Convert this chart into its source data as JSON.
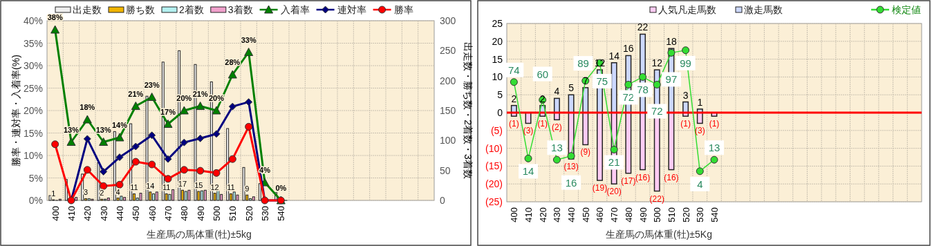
{
  "chart_data": [
    {
      "type": "bar",
      "xlabel": "生産馬の馬体重(牡)±5kg",
      "ylabel": "勝率・連対率・入着率(%)",
      "y2label": "出走数・勝ち数・2着数・3着数",
      "categories": [
        "400",
        "410",
        "420",
        "430",
        "440",
        "450",
        "460",
        "470",
        "480",
        "490",
        "500",
        "510",
        "520",
        "530",
        "540",
        null,
        null,
        null,
        null,
        null,
        null,
        null,
        null,
        null
      ],
      "ylim": [
        0,
        40
      ],
      "yticks": [
        {
          "value": 0,
          "label": "0%"
        },
        {
          "value": 5,
          "label": "5%"
        },
        {
          "value": 10,
          "label": "10%"
        },
        {
          "value": 15,
          "label": "15%"
        },
        {
          "value": 20,
          "label": "20%"
        },
        {
          "value": 25,
          "label": "25%"
        },
        {
          "value": 30,
          "label": "30%"
        },
        {
          "value": 35,
          "label": "35%"
        },
        {
          "value": 40,
          "label": "40%"
        }
      ],
      "y2lim": [
        0,
        300
      ],
      "y2ticks": [
        0,
        50,
        100,
        150,
        200,
        250,
        300
      ],
      "grid": true,
      "legend": "top",
      "series": [
        {
          "name": "出走数",
          "color": "#eeeeee",
          "axis": "y2",
          "values": [
            8,
            35,
            44,
            63,
            115,
            128,
            174,
            231,
            250,
            227,
            198,
            120,
            55,
            28,
            13,
            null,
            null,
            null,
            null,
            null,
            null,
            null,
            null,
            null
          ]
        },
        {
          "name": "勝ち数",
          "color": "#f0b400",
          "axis": "y2",
          "values": [
            1,
            0,
            3,
            2,
            4,
            11,
            14,
            11,
            17,
            15,
            12,
            11,
            9,
            0,
            0,
            null,
            null,
            null,
            null,
            null,
            null,
            null,
            null,
            null
          ],
          "value_labels": [
            "1",
            null,
            "3",
            "2",
            "4",
            "11",
            "14",
            "11",
            "17",
            "15",
            "12",
            "11",
            "9",
            null,
            null,
            null,
            null,
            null,
            null,
            null,
            null,
            null,
            null,
            null
          ]
        },
        {
          "name": "2着数",
          "color": "#b4f0f0",
          "axis": "y2",
          "values": [
            0,
            0,
            3,
            2,
            7,
            4,
            11,
            10,
            15,
            16,
            17,
            14,
            3,
            0,
            0,
            null,
            null,
            null,
            null,
            null,
            null,
            null,
            null,
            null
          ]
        },
        {
          "name": "3着数",
          "color": "#f0a0cc",
          "axis": "y2",
          "values": [
            2,
            5,
            2,
            4,
            5,
            12,
            14,
            18,
            17,
            17,
            10,
            9,
            6,
            null,
            0,
            null,
            null,
            null,
            null,
            null,
            null,
            null,
            null,
            null
          ]
        },
        {
          "name": "入着率",
          "type": "line",
          "color": "#008000",
          "marker": "triangle",
          "values": [
            38,
            13,
            18,
            13,
            14,
            21,
            23,
            17,
            20,
            21,
            20,
            28,
            33,
            4,
            0,
            null,
            null,
            null,
            null,
            null,
            null,
            null,
            null,
            null
          ],
          "value_labels": [
            "38%",
            "13%",
            "18%",
            "13%",
            "14%",
            "21%",
            "23%",
            "17%",
            "20%",
            "21%",
            "20%",
            "28%",
            "33%",
            "4%",
            "0%",
            null,
            null,
            null,
            null,
            null,
            null,
            null,
            null,
            null
          ]
        },
        {
          "name": "連対率",
          "type": "line",
          "color": "#000080",
          "marker": "diamond",
          "values": [
            null,
            0,
            13.7,
            6.4,
            9.6,
            12.0,
            14.5,
            9.2,
            12.9,
            13.8,
            14.8,
            20.9,
            21.9,
            0,
            0,
            null,
            null,
            null,
            null,
            null,
            null,
            null,
            null,
            null
          ]
        },
        {
          "name": "勝率",
          "type": "line",
          "color": "#ff0000",
          "marker": "circle",
          "values": [
            12.5,
            0,
            6.8,
            3.2,
            3.5,
            8.6,
            8.0,
            4.8,
            6.8,
            6.6,
            6.1,
            9.2,
            16.4,
            0,
            0,
            null,
            null,
            null,
            null,
            null,
            null,
            null,
            null,
            null
          ]
        }
      ]
    },
    {
      "type": "bar",
      "stacked": true,
      "xlabel": "生産馬の馬体重(牡)±5Kg",
      "categories": [
        "400",
        "410",
        "420",
        "430",
        "440",
        "450",
        "460",
        "470",
        "480",
        "490",
        "500",
        "510",
        "520",
        "530",
        "540",
        null,
        null,
        null,
        null,
        null,
        null,
        null,
        null,
        null,
        null,
        null,
        null,
        null,
        null
      ],
      "ylim": [
        -25,
        25
      ],
      "y2lim": [
        -20,
        120
      ],
      "yticks": [
        {
          "value": -25,
          "label": "(25)"
        },
        {
          "value": -20,
          "label": "(20)"
        },
        {
          "value": -15,
          "label": "(15)"
        },
        {
          "value": -10,
          "label": "(10)"
        },
        {
          "value": -5,
          "label": "(5)"
        },
        0,
        5,
        10,
        15,
        20,
        25
      ],
      "grid": true,
      "legend": "top",
      "ref_lines": [
        {
          "axis": "y",
          "value": 0,
          "color": "#ff0000"
        }
      ],
      "series": [
        {
          "name": "人気凡走馬数",
          "color": "#ffccf4",
          "values": [
            -1,
            -3,
            -1,
            -2,
            -13,
            -9,
            -19,
            -20,
            -17,
            -16,
            -22,
            -16,
            -1,
            -3,
            -1,
            null,
            null,
            null,
            null,
            null,
            null,
            null,
            null,
            null,
            null,
            null,
            null,
            null,
            null
          ],
          "value_labels": [
            "(1)",
            "(3)",
            "(1)",
            "(2)",
            "(13)",
            "(9)",
            "(19)",
            "(20)",
            "(17)",
            "(16)",
            "(22)",
            "(16)",
            "(1)",
            "(3)",
            "(1)",
            null,
            null,
            null,
            null,
            null,
            null,
            null,
            null,
            null,
            null,
            null,
            null,
            null,
            null
          ]
        },
        {
          "name": "激走馬数",
          "color": "#ccd8ff",
          "values": [
            2,
            null,
            2,
            4,
            5,
            7,
            12,
            14,
            16,
            22,
            12,
            18,
            3,
            1,
            null,
            null,
            null,
            null,
            null,
            null,
            null,
            null,
            null,
            null,
            null,
            null,
            null,
            null,
            null
          ],
          "value_labels": [
            "2",
            null,
            "2",
            "4",
            "5",
            "7",
            "12",
            "14",
            "16",
            "22",
            "12",
            "18",
            "3",
            "1",
            null,
            null,
            null,
            null,
            null,
            null,
            null,
            null,
            null,
            null,
            null,
            null,
            null,
            null,
            null
          ]
        },
        {
          "name": "検定値",
          "type": "line",
          "color": "#33dd33",
          "marker": "circle",
          "axis": "y2",
          "values": [
            74,
            14,
            60,
            13,
            16,
            75,
            89,
            21,
            72,
            78,
            72,
            97,
            99,
            4,
            13,
            null,
            null,
            null,
            null,
            null,
            null,
            null,
            null,
            null,
            null,
            null,
            null,
            null,
            null
          ],
          "value_labels": [
            "74",
            "14",
            "60",
            "13",
            "16",
            "75",
            "89",
            "21",
            "72",
            "78",
            "72",
            "97",
            "99",
            "4",
            "13",
            null,
            null,
            null,
            null,
            null,
            null,
            null,
            null,
            null,
            null,
            null,
            null,
            null,
            null
          ]
        }
      ]
    }
  ]
}
